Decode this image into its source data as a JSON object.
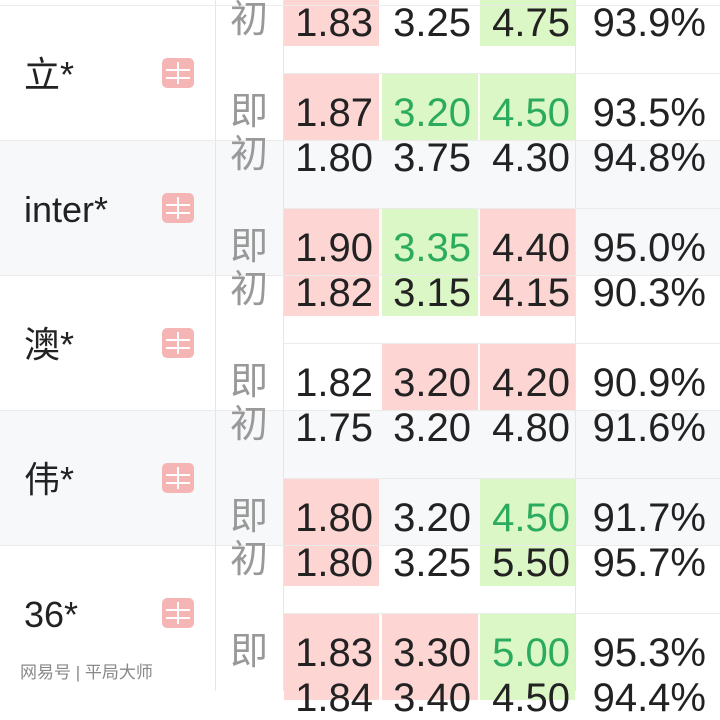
{
  "labels": {
    "initial": "初",
    "current": "即"
  },
  "colors": {
    "up_bg": "#fdd6d4",
    "down_bg": "#dcf7c6",
    "down_text": "#2bab5e"
  },
  "top_partial_trend": [
    "up",
    "none",
    "down"
  ],
  "bookmakers": [
    {
      "name": "立*",
      "icon": "bookmaker-badge-icon",
      "initial": [
        "1.83",
        "3.25",
        "4.75",
        "93.9%"
      ],
      "current": [
        "1.87",
        "3.20",
        "4.50",
        "93.5%"
      ],
      "current_trend": [
        "up",
        "down",
        "down"
      ]
    },
    {
      "name": "inter*",
      "icon": "bookmaker-badge-icon",
      "initial": [
        "1.80",
        "3.75",
        "4.30",
        "94.8%"
      ],
      "current": [
        "1.90",
        "3.35",
        "4.40",
        "95.0%"
      ],
      "current_trend": [
        "up",
        "down",
        "up"
      ]
    },
    {
      "name": "澳*",
      "icon": "bookmaker-badge-icon",
      "initial": [
        "1.82",
        "3.15",
        "4.15",
        "90.3%"
      ],
      "current": [
        "1.82",
        "3.20",
        "4.20",
        "90.9%"
      ],
      "current_trend": [
        "none",
        "up",
        "up"
      ]
    },
    {
      "name": "伟*",
      "icon": "bookmaker-badge-icon",
      "initial": [
        "1.75",
        "3.20",
        "4.80",
        "91.6%"
      ],
      "current": [
        "1.80",
        "3.20",
        "4.50",
        "91.7%"
      ],
      "current_trend": [
        "up",
        "none",
        "down"
      ]
    },
    {
      "name": "36*",
      "icon": "bookmaker-badge-icon",
      "initial": [
        "1.80",
        "3.25",
        "5.50",
        "95.7%"
      ],
      "current": [
        "1.83",
        "3.30",
        "5.00",
        "95.3%"
      ],
      "current_trend": [
        "up",
        "up",
        "down"
      ]
    }
  ],
  "partial_next_initial": [
    "1.84",
    "3.40",
    "4.50",
    "94.4%"
  ],
  "watermark": "网易号 | 平局大师"
}
